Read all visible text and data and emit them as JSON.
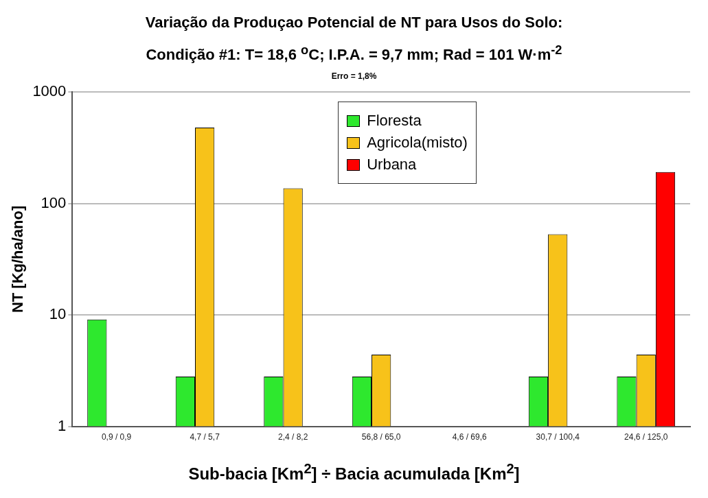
{
  "chart_data": {
    "type": "bar",
    "title": "Variação da Produçao Potencial de NT para Usos do Solo:",
    "subtitle": "Condição #1: T= 18,6 $^{o}$C;   I.P.A. = 9,7 mm; Rad = 101 W·m$^{-2}$",
    "annotations": [
      "Erro = 1,8%"
    ],
    "xlabel": "Sub-bacia [Km$^{2}$] ÷ Bacia acumulada [Km$^{2}$]",
    "ylabel": "NT [Kg/ha/ano]",
    "categories": [
      "0,9 / 0,9",
      "4,7 / 5,7",
      "2,4 / 8,2",
      "56,8 / 65,0",
      "4,6 / 69,6",
      "30,7 / 100,4",
      "24,6 / 125,0"
    ],
    "series": [
      {
        "name": "Floresta",
        "color": "#2ee82e",
        "values": [
          9.1,
          2.8,
          2.8,
          2.8,
          null,
          2.8,
          2.8
        ]
      },
      {
        "name": "Agricola(misto)",
        "color": "#f7c21a",
        "values": [
          null,
          480,
          137,
          4.4,
          null,
          53,
          4.4
        ]
      },
      {
        "name": "Urbana",
        "color": "#ff0000",
        "values": [
          null,
          null,
          null,
          null,
          null,
          null,
          192
        ]
      }
    ],
    "log": true,
    "ylim": [
      1,
      1000
    ],
    "yticks": [
      1,
      10,
      100,
      1000
    ],
    "grid": "y",
    "legend": "top"
  }
}
